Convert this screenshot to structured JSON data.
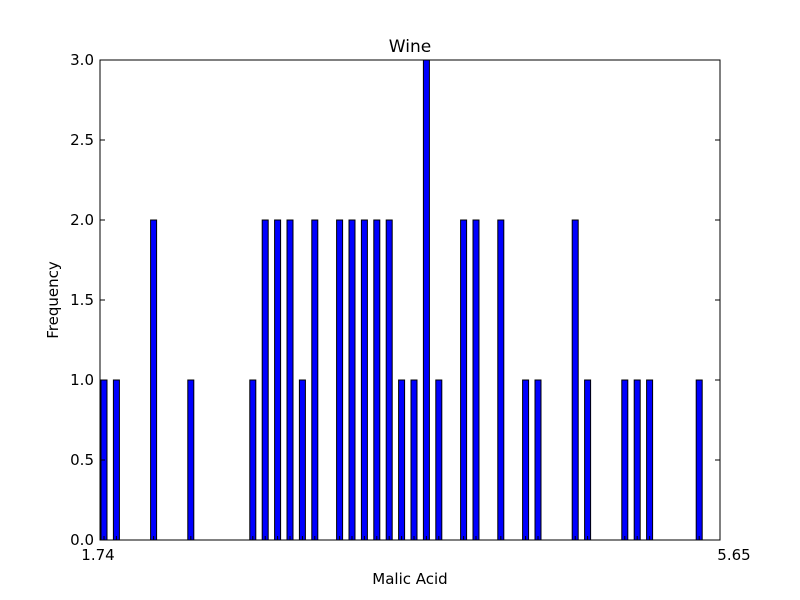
{
  "chart_data": {
    "type": "bar",
    "title": "Wine",
    "xlabel": "Malic Acid",
    "ylabel": "Frequency",
    "ylim": [
      0,
      3
    ],
    "yticks": [
      "0.0",
      "0.5",
      "1.0",
      "1.5",
      "2.0",
      "2.5",
      "3.0"
    ],
    "x_tick_labels_note": "overlapping illegible tick labels along x-axis",
    "x_first_label": "1.74",
    "x_last_label": "5.65",
    "bar_color": "#0000ff",
    "grid": false,
    "bars": [
      {
        "slot": 0,
        "value": 1
      },
      {
        "slot": 1,
        "value": 1
      },
      {
        "slot": 4,
        "value": 2
      },
      {
        "slot": 7,
        "value": 1
      },
      {
        "slot": 12,
        "value": 1
      },
      {
        "slot": 13,
        "value": 2
      },
      {
        "slot": 14,
        "value": 2
      },
      {
        "slot": 15,
        "value": 2
      },
      {
        "slot": 16,
        "value": 1
      },
      {
        "slot": 17,
        "value": 2
      },
      {
        "slot": 19,
        "value": 2
      },
      {
        "slot": 20,
        "value": 2
      },
      {
        "slot": 21,
        "value": 2
      },
      {
        "slot": 22,
        "value": 2
      },
      {
        "slot": 23,
        "value": 2
      },
      {
        "slot": 24,
        "value": 1
      },
      {
        "slot": 25,
        "value": 1
      },
      {
        "slot": 26,
        "value": 3
      },
      {
        "slot": 27,
        "value": 1
      },
      {
        "slot": 29,
        "value": 2
      },
      {
        "slot": 30,
        "value": 2
      },
      {
        "slot": 32,
        "value": 2
      },
      {
        "slot": 34,
        "value": 1
      },
      {
        "slot": 35,
        "value": 1
      },
      {
        "slot": 38,
        "value": 2
      },
      {
        "slot": 39,
        "value": 1
      },
      {
        "slot": 42,
        "value": 1
      },
      {
        "slot": 43,
        "value": 1
      },
      {
        "slot": 44,
        "value": 1
      },
      {
        "slot": 48,
        "value": 1
      }
    ],
    "slot_count": 50
  }
}
